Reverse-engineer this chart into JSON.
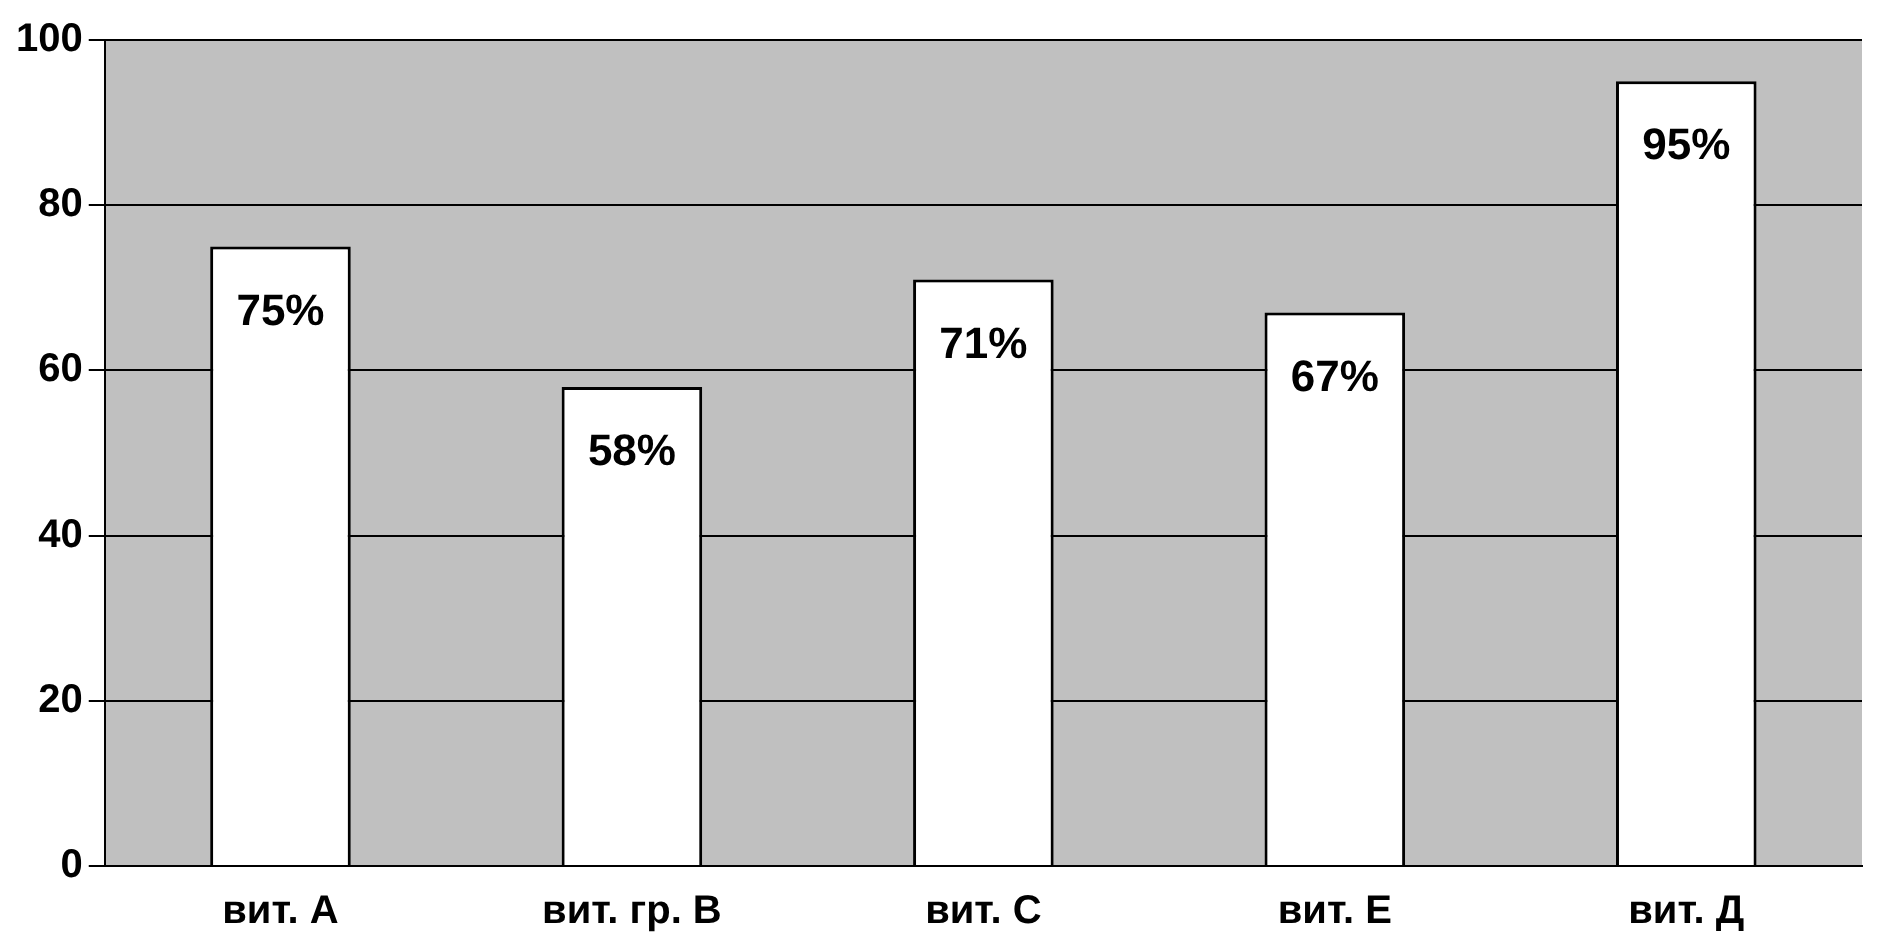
{
  "chart_data": {
    "type": "bar",
    "categories": [
      "вит. А",
      "вит. гр. В",
      "вит. С",
      "вит. Е",
      "вит. Д"
    ],
    "values": [
      75,
      58,
      71,
      67,
      95
    ],
    "value_labels": [
      "75%",
      "58%",
      "71%",
      "67%",
      "95%"
    ],
    "color": "#ffffff",
    "ylim": [
      0,
      100
    ],
    "yticks": [
      0,
      20,
      40,
      60,
      80,
      100
    ],
    "grid": "y"
  }
}
